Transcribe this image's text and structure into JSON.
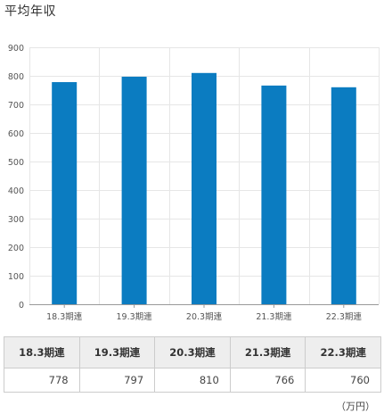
{
  "title": "平均年収",
  "unit": "（万円）",
  "colors": {
    "bar": "#0b7cc1",
    "grid": "#e6e6e6",
    "axis": "#999999"
  },
  "chart_data": {
    "type": "bar",
    "title": "平均年収",
    "categories": [
      "18.3期連",
      "19.3期連",
      "20.3期連",
      "21.3期連",
      "22.3期連"
    ],
    "values": [
      778,
      797,
      810,
      766,
      760
    ],
    "ylim": [
      0,
      900
    ],
    "yticks": [
      0,
      100,
      200,
      300,
      400,
      500,
      600,
      700,
      800,
      900
    ],
    "grid": true,
    "legend": "none"
  },
  "table": {
    "headers": [
      "18.3期連",
      "19.3期連",
      "20.3期連",
      "21.3期連",
      "22.3期連"
    ],
    "values": [
      "778",
      "797",
      "810",
      "766",
      "760"
    ]
  }
}
